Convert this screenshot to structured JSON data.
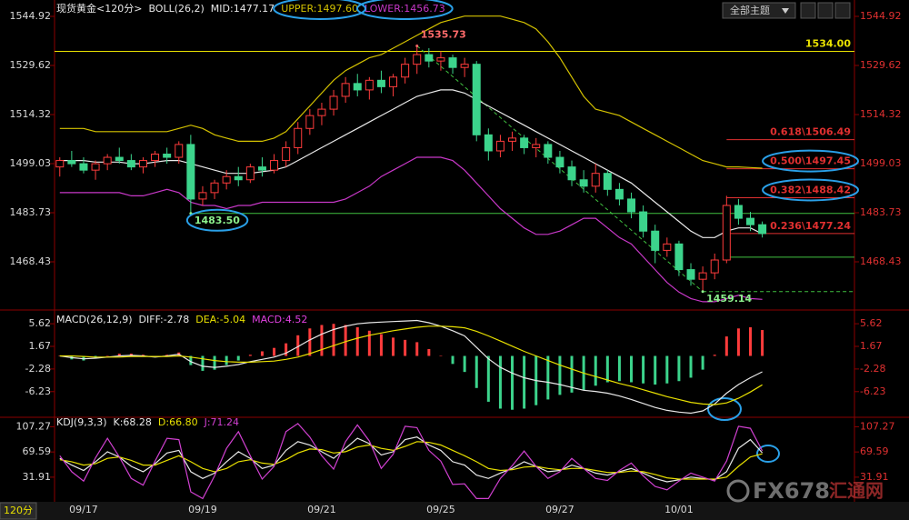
{
  "ui": {
    "theme_menu": "全部主题",
    "period": "120分",
    "watermark": "FX678",
    "watermark_cn": "汇通网"
  },
  "chart_data": [
    {
      "type": "candlestick",
      "title": "现货黄金<120分>",
      "indicator": "BOLL(26,2)",
      "xlim": [
        -0.44,
        66.74
      ],
      "ylim": [
        1453.7,
        1550.02
      ],
      "yticks": [
        1544.92,
        1529.62,
        1514.32,
        1499.03,
        1483.73,
        1468.43
      ],
      "up_color": "#ff3c3c",
      "down_color": "#3cd48c",
      "open": [
        1498,
        1500,
        1499,
        1497,
        1499,
        1501,
        1500,
        1498,
        1500,
        1502,
        1501,
        1505,
        1488,
        1490,
        1493,
        1495,
        1494,
        1498,
        1497,
        1500,
        1504,
        1510,
        1514,
        1516,
        1520,
        1524,
        1522,
        1525,
        1523,
        1526,
        1530,
        1533,
        1531,
        1532,
        1529,
        1530,
        1508,
        1503,
        1506,
        1507,
        1504,
        1505,
        1501,
        1498,
        1494,
        1492,
        1496,
        1491,
        1488,
        1484,
        1478,
        1472,
        1474,
        1466,
        1463,
        1465,
        1469,
        1486,
        1482,
        1480
      ],
      "high": [
        1501,
        1503,
        1501,
        1500,
        1502,
        1504,
        1502,
        1501,
        1503,
        1504,
        1506,
        1508,
        1492,
        1494,
        1497,
        1498,
        1499,
        1501,
        1502,
        1506,
        1512,
        1516,
        1518,
        1522,
        1526,
        1527,
        1526,
        1528,
        1527,
        1532,
        1535.73,
        1535,
        1534,
        1533,
        1532,
        1531,
        1510,
        1508,
        1509,
        1508,
        1507,
        1506,
        1503,
        1500,
        1497,
        1499,
        1497,
        1493,
        1490,
        1486,
        1480,
        1476,
        1475,
        1468,
        1467,
        1471,
        1489,
        1488,
        1484,
        1481
      ],
      "low": [
        1495,
        1498,
        1496,
        1494,
        1497,
        1499,
        1497,
        1496,
        1498,
        1499,
        1499,
        1483.5,
        1486,
        1488,
        1491,
        1492,
        1493,
        1495,
        1496,
        1498,
        1502,
        1508,
        1511,
        1514,
        1518,
        1520,
        1519,
        1521,
        1520,
        1524,
        1527,
        1529,
        1528,
        1527,
        1526,
        1506,
        1500,
        1501,
        1503,
        1502,
        1501,
        1499,
        1496,
        1492,
        1490,
        1490,
        1489,
        1486,
        1482,
        1476,
        1468,
        1470,
        1464,
        1461,
        1459.14,
        1463,
        1468,
        1480,
        1478,
        1476
      ],
      "close": [
        1500,
        1499,
        1497,
        1499,
        1501,
        1500,
        1498,
        1500,
        1502,
        1501,
        1505,
        1488,
        1490,
        1493,
        1495,
        1494,
        1498,
        1497,
        1500,
        1504,
        1510,
        1514,
        1516,
        1520,
        1524,
        1522,
        1525,
        1523,
        1526,
        1530,
        1533,
        1531,
        1532,
        1529,
        1530,
        1508,
        1503,
        1506,
        1507,
        1504,
        1505,
        1501,
        1498,
        1494,
        1492,
        1496,
        1491,
        1488,
        1484,
        1478,
        1472,
        1474,
        1466,
        1463,
        1465,
        1469,
        1486,
        1482,
        1480,
        1477.24
      ],
      "series": [
        {
          "name": "MID:1477.17",
          "color": "#e8e8e8",
          "values": [
            1500,
            1500,
            1500,
            1499.5,
            1499.5,
            1499.5,
            1499,
            1499,
            1499.5,
            1500,
            1500,
            1499,
            1498,
            1497,
            1496,
            1496,
            1496,
            1496.5,
            1497,
            1498,
            1500,
            1502,
            1504,
            1506,
            1508,
            1510,
            1512,
            1514,
            1516,
            1518,
            1520,
            1521,
            1522,
            1522,
            1521,
            1519,
            1517,
            1515,
            1513,
            1511,
            1509,
            1507,
            1505,
            1503,
            1501,
            1499,
            1497,
            1495,
            1493,
            1490,
            1487,
            1484,
            1481,
            1478,
            1476,
            1476,
            1478,
            1479,
            1479,
            1477.17
          ]
        },
        {
          "name": "UPPER:1497.60",
          "color": "#d4c200",
          "values": [
            1510,
            1510,
            1510,
            1509,
            1509,
            1509,
            1509,
            1509,
            1509,
            1509,
            1510,
            1511,
            1510,
            1508,
            1507,
            1506,
            1506,
            1506,
            1507,
            1509,
            1513,
            1517,
            1521,
            1525,
            1528,
            1530,
            1532,
            1533,
            1535,
            1537,
            1539,
            1541,
            1543,
            1544,
            1545,
            1545,
            1545,
            1545,
            1544,
            1543,
            1541,
            1537,
            1532,
            1526,
            1520,
            1516,
            1515,
            1514,
            1512,
            1510,
            1508,
            1506,
            1504,
            1502,
            1500,
            1499,
            1498,
            1498,
            1497.8,
            1497.6
          ]
        },
        {
          "name": "LOWER:1456.73",
          "color": "#c838c8",
          "values": [
            1490,
            1490,
            1490,
            1490,
            1490,
            1490,
            1489,
            1489,
            1490,
            1491,
            1490,
            1487,
            1486,
            1486,
            1485,
            1486,
            1486,
            1487,
            1487,
            1487,
            1487,
            1487,
            1487,
            1487,
            1488,
            1490,
            1492,
            1495,
            1497,
            1499,
            1501,
            1501,
            1501,
            1500,
            1497,
            1493,
            1489,
            1485,
            1482,
            1479,
            1477,
            1477,
            1478,
            1480,
            1482,
            1482,
            1479,
            1476,
            1474,
            1470,
            1466,
            1462,
            1459,
            1457,
            1456,
            1456,
            1457,
            1458,
            1457,
            1456.73
          ]
        }
      ],
      "hlines": [
        {
          "value": 1534,
          "label": "1534.00",
          "color": "#e8e000"
        },
        {
          "value": 1483.5,
          "color": "#40c040",
          "from": 11
        },
        {
          "value": 1506.49,
          "label": "0.618\\1506.49",
          "color": "#e03030",
          "from": 56
        },
        {
          "value": 1497.45,
          "label": "0.500\\1497.45",
          "color": "#e03030",
          "from": 56
        },
        {
          "value": 1488.42,
          "label": "0.382\\1488.42",
          "color": "#e03030",
          "from": 56
        },
        {
          "value": 1477.24,
          "label": "0.236\\1477.24",
          "color": "#e03030",
          "from": 56
        },
        {
          "value": 1469.9,
          "color": "#40c040",
          "from": 56
        },
        {
          "value": 1459.14,
          "color": "#40c040",
          "from": 54,
          "dashed": true
        }
      ],
      "annotations": [
        {
          "label": "1535.73",
          "value": 1535.73,
          "index": 30,
          "color": "#ff6a6a"
        },
        {
          "label": "1483.50",
          "value": 1483.5,
          "index": 11,
          "color": "#8cf08c"
        },
        {
          "label": "1459.14",
          "value": 1459.14,
          "index": 54,
          "color": "#8cf08c"
        }
      ]
    },
    {
      "type": "macd",
      "title": "MACD(26,12,9)",
      "xlim": [
        -0.44,
        66.74
      ],
      "ylim": [
        -10.71,
        7.7
      ],
      "yticks": [
        5.62,
        1.67,
        -2.28,
        -6.23
      ],
      "series": [
        {
          "name": "DIFF:-2.78",
          "color": "#e8e8e8",
          "values": [
            0,
            -0.3,
            -0.5,
            -0.4,
            -0.2,
            0,
            0.1,
            0,
            -0.2,
            0,
            0.3,
            -1,
            -1.8,
            -2,
            -1.8,
            -1.5,
            -1,
            -0.6,
            -0.2,
            0.5,
            1.6,
            2.8,
            3.8,
            4.6,
            5.2,
            5.6,
            5.8,
            5.9,
            6,
            6.1,
            6.2,
            5.8,
            5.2,
            4.4,
            3.5,
            1.5,
            -0.5,
            -2,
            -3,
            -3.8,
            -4.3,
            -4.6,
            -5,
            -5.5,
            -6,
            -6.2,
            -6.5,
            -7,
            -7.6,
            -8.3,
            -9,
            -9.5,
            -9.8,
            -10,
            -9.6,
            -8.4,
            -6.5,
            -5,
            -3.8,
            -2.78
          ]
        },
        {
          "name": "DEA:-5.04",
          "color": "#e8e000",
          "values": [
            0,
            0,
            -0.1,
            -0.2,
            -0.2,
            -0.2,
            -0.1,
            -0.1,
            -0.1,
            -0.1,
            0,
            -0.2,
            -0.5,
            -0.8,
            -1,
            -1.1,
            -1.1,
            -1,
            -0.9,
            -0.6,
            -0.2,
            0.4,
            1.1,
            1.8,
            2.5,
            3.1,
            3.6,
            4,
            4.4,
            4.7,
            5,
            5.2,
            5.2,
            5.1,
            4.9,
            4.3,
            3.5,
            2.6,
            1.7,
            0.8,
            0,
            -0.8,
            -1.6,
            -2.3,
            -3,
            -3.6,
            -4.2,
            -4.8,
            -5.3,
            -5.9,
            -6.5,
            -7.1,
            -7.6,
            -8.1,
            -8.4,
            -8.5,
            -8.2,
            -7.4,
            -6.3,
            -5.04
          ]
        }
      ],
      "histogram": {
        "name": "MACD:4.52",
        "color": "#e040e0",
        "up_color": "#ff3c3c",
        "down_color": "#3cd48c",
        "values": [
          0,
          -0.6,
          -0.8,
          -0.4,
          0,
          0.4,
          0.4,
          0.2,
          -0.2,
          0.2,
          0.6,
          -1.6,
          -2.6,
          -2.4,
          -1.6,
          -0.8,
          0.2,
          0.8,
          1.4,
          2.2,
          3.6,
          4.8,
          5.4,
          5.6,
          5.4,
          5,
          4.4,
          3.8,
          3.2,
          2.8,
          2.4,
          1.2,
          0,
          -1.4,
          -2.8,
          -5.6,
          -8,
          -9.2,
          -9.4,
          -9.2,
          -8.6,
          -7.6,
          -6.8,
          -6.4,
          -6,
          -5.2,
          -4.6,
          -4.4,
          -4.6,
          -4.8,
          -5,
          -4.8,
          -4.4,
          -3.8,
          -2.4,
          0.2,
          3.4,
          4.8,
          5,
          4.52
        ]
      }
    },
    {
      "type": "line",
      "title": "KDJ(9,3,3)",
      "xlim": [
        -0.44,
        66.74
      ],
      "ylim": [
        -2.2,
        120.07
      ],
      "yticks": [
        107.27,
        69.59,
        31.91
      ],
      "xticks": [
        {
          "value": 2,
          "label": "09/17"
        },
        {
          "value": 12,
          "label": "09/19"
        },
        {
          "value": 22,
          "label": "09/21"
        },
        {
          "value": 32,
          "label": "09/25"
        },
        {
          "value": 42,
          "label": "09/27"
        },
        {
          "value": 52,
          "label": "10/01"
        }
      ],
      "series": [
        {
          "name": "K:68.28",
          "color": "#e8e8e8",
          "values": [
            60,
            50,
            42,
            55,
            70,
            62,
            48,
            40,
            52,
            68,
            72,
            40,
            30,
            38,
            55,
            70,
            60,
            45,
            50,
            72,
            85,
            80,
            70,
            60,
            75,
            90,
            82,
            65,
            70,
            88,
            92,
            80,
            72,
            55,
            50,
            35,
            30,
            38,
            45,
            55,
            48,
            40,
            42,
            50,
            45,
            38,
            35,
            40,
            45,
            38,
            30,
            25,
            28,
            32,
            30,
            28,
            40,
            75,
            88,
            68.28
          ]
        },
        {
          "name": "D:66.80",
          "color": "#e8e000",
          "values": [
            58,
            55,
            50,
            52,
            60,
            62,
            57,
            50,
            50,
            57,
            64,
            55,
            45,
            40,
            45,
            55,
            58,
            53,
            51,
            58,
            68,
            74,
            73,
            68,
            70,
            77,
            80,
            75,
            72,
            78,
            85,
            84,
            80,
            72,
            64,
            55,
            45,
            42,
            43,
            47,
            48,
            45,
            43,
            45,
            45,
            42,
            39,
            39,
            41,
            40,
            36,
            31,
            29,
            29,
            29,
            29,
            32,
            48,
            62,
            66.8
          ]
        },
        {
          "name": "J:71.24",
          "color": "#d040d0",
          "values": [
            64,
            40,
            26,
            61,
            90,
            62,
            30,
            20,
            56,
            90,
            88,
            10,
            0,
            34,
            75,
            100,
            64,
            29,
            48,
            100,
            112,
            92,
            64,
            44,
            85,
            110,
            86,
            45,
            66,
            108,
            106,
            72,
            56,
            21,
            22,
            0,
            0,
            30,
            49,
            71,
            48,
            30,
            40,
            60,
            45,
            30,
            27,
            42,
            53,
            34,
            18,
            13,
            26,
            38,
            32,
            26,
            56,
            108,
            105,
            71.24
          ]
        }
      ]
    }
  ]
}
